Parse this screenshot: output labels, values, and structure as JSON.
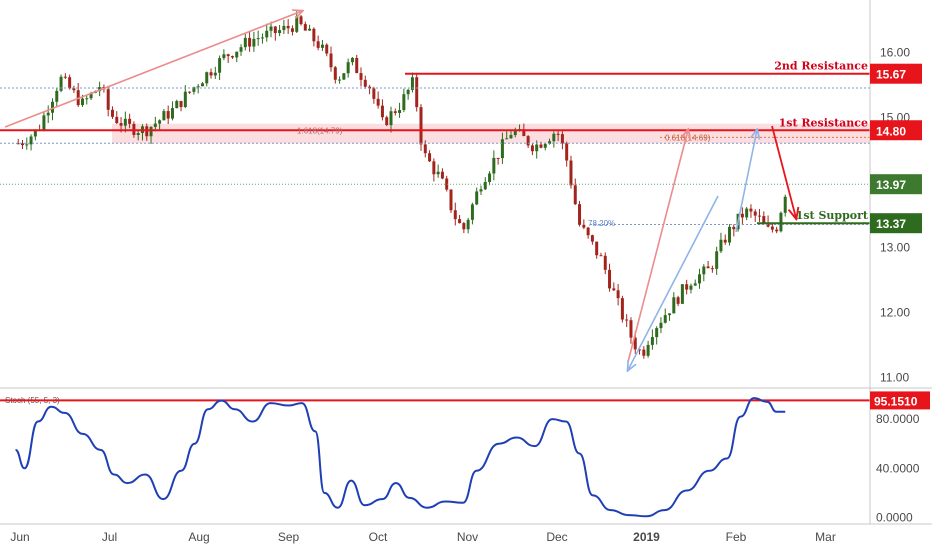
{
  "chart_data": [
    {
      "type": "candlestick",
      "title": "",
      "x_ticks": [
        "Jun",
        "Jul",
        "Aug",
        "Sep",
        "Oct",
        "Nov",
        "Dec",
        "2019",
        "Feb",
        "Mar"
      ],
      "y_ticks": [
        "16.00",
        "15.00",
        "14.00",
        "13.00",
        "12.00",
        "11.00"
      ],
      "ylim": [
        10.85,
        16.65
      ],
      "price_path": [
        {
          "m": 0.0,
          "v": 14.6
        },
        {
          "m": 0.2,
          "v": 14.8
        },
        {
          "m": 0.45,
          "v": 15.6
        },
        {
          "m": 0.7,
          "v": 15.2
        },
        {
          "m": 0.9,
          "v": 15.5
        },
        {
          "m": 1.0,
          "v": 15.05
        },
        {
          "m": 1.2,
          "v": 14.85
        },
        {
          "m": 1.4,
          "v": 14.8
        },
        {
          "m": 1.7,
          "v": 15.1
        },
        {
          "m": 2.0,
          "v": 15.55
        },
        {
          "m": 2.3,
          "v": 15.95
        },
        {
          "m": 2.6,
          "v": 16.2
        },
        {
          "m": 2.95,
          "v": 16.35
        },
        {
          "m": 3.1,
          "v": 16.45
        },
        {
          "m": 3.35,
          "v": 16.1
        },
        {
          "m": 3.55,
          "v": 15.6
        },
        {
          "m": 3.7,
          "v": 15.85
        },
        {
          "m": 3.9,
          "v": 15.5
        },
        {
          "m": 4.05,
          "v": 14.9
        },
        {
          "m": 4.25,
          "v": 15.2
        },
        {
          "m": 4.4,
          "v": 15.55
        },
        {
          "m": 4.5,
          "v": 14.45
        },
        {
          "m": 4.7,
          "v": 14.05
        },
        {
          "m": 4.85,
          "v": 13.5
        },
        {
          "m": 4.95,
          "v": 13.25
        },
        {
          "m": 5.15,
          "v": 14.0
        },
        {
          "m": 5.3,
          "v": 14.35
        },
        {
          "m": 5.5,
          "v": 14.8
        },
        {
          "m": 5.75,
          "v": 14.55
        },
        {
          "m": 6.0,
          "v": 14.8
        },
        {
          "m": 6.1,
          "v": 14.4
        },
        {
          "m": 6.25,
          "v": 13.35
        },
        {
          "m": 6.5,
          "v": 12.8
        },
        {
          "m": 6.7,
          "v": 12.05
        },
        {
          "m": 6.85,
          "v": 11.55
        },
        {
          "m": 6.95,
          "v": 11.35
        },
        {
          "m": 7.05,
          "v": 11.7
        },
        {
          "m": 7.25,
          "v": 12.05
        },
        {
          "m": 7.5,
          "v": 12.5
        },
        {
          "m": 7.7,
          "v": 12.65
        },
        {
          "m": 7.9,
          "v": 13.2
        },
        {
          "m": 8.1,
          "v": 13.55
        },
        {
          "m": 8.25,
          "v": 13.45
        },
        {
          "m": 8.35,
          "v": 13.25
        },
        {
          "m": 8.45,
          "v": 13.3
        },
        {
          "m": 8.55,
          "v": 13.85
        }
      ],
      "horizontal_levels": [
        {
          "value": 15.67,
          "label": "2nd Resistance",
          "tag": "15.67",
          "color": "#e8141c"
        },
        {
          "value": 14.8,
          "label": "1st Resistance",
          "tag": "14.80",
          "color": "#e8141c"
        },
        {
          "value": 13.37,
          "label": "1st Support",
          "tag": "13.37",
          "color": "#2e6b1e"
        }
      ],
      "current_price_tag": "13.97",
      "fib_labels": [
        "1.618(14.79)",
        "0.618(14.69)",
        "78.20%"
      ],
      "resistance_zone": [
        14.6,
        14.9
      ],
      "colors": {
        "resistance": "#e8141c",
        "support": "#2e6b1e",
        "up_candle": "#2e6b1e",
        "down_candle": "#a3241d",
        "price_tag": "#3d7a30",
        "zone": "#fbd6d8"
      }
    },
    {
      "type": "line",
      "title": "Stoch (55, 5, 3)",
      "y_ticks": [
        "80.0000",
        "40.0000",
        "0.0000"
      ],
      "ylim": [
        -2,
        102
      ],
      "level": {
        "value": 95.151,
        "tag": "95.1510"
      },
      "series": [
        {
          "name": "",
          "color": "#1f3fb6",
          "points": [
            {
              "m": -0.05,
              "v": 55
            },
            {
              "m": 0.05,
              "v": 40
            },
            {
              "m": 0.2,
              "v": 78
            },
            {
              "m": 0.35,
              "v": 90
            },
            {
              "m": 0.5,
              "v": 85
            },
            {
              "m": 0.7,
              "v": 68
            },
            {
              "m": 0.9,
              "v": 55
            },
            {
              "m": 1.05,
              "v": 35
            },
            {
              "m": 1.2,
              "v": 28
            },
            {
              "m": 1.4,
              "v": 35
            },
            {
              "m": 1.6,
              "v": 15
            },
            {
              "m": 1.8,
              "v": 38
            },
            {
              "m": 1.95,
              "v": 60
            },
            {
              "m": 2.1,
              "v": 88
            },
            {
              "m": 2.25,
              "v": 95
            },
            {
              "m": 2.4,
              "v": 88
            },
            {
              "m": 2.6,
              "v": 78
            },
            {
              "m": 2.8,
              "v": 93
            },
            {
              "m": 3.0,
              "v": 91
            },
            {
              "m": 3.15,
              "v": 93
            },
            {
              "m": 3.3,
              "v": 70
            },
            {
              "m": 3.4,
              "v": 20
            },
            {
              "m": 3.55,
              "v": 8
            },
            {
              "m": 3.7,
              "v": 30
            },
            {
              "m": 3.85,
              "v": 10
            },
            {
              "m": 4.05,
              "v": 15
            },
            {
              "m": 4.2,
              "v": 28
            },
            {
              "m": 4.35,
              "v": 16
            },
            {
              "m": 4.55,
              "v": 8
            },
            {
              "m": 4.75,
              "v": 13
            },
            {
              "m": 4.95,
              "v": 12
            },
            {
              "m": 5.1,
              "v": 38
            },
            {
              "m": 5.35,
              "v": 60
            },
            {
              "m": 5.55,
              "v": 65
            },
            {
              "m": 5.75,
              "v": 58
            },
            {
              "m": 5.95,
              "v": 80
            },
            {
              "m": 6.1,
              "v": 78
            },
            {
              "m": 6.25,
              "v": 52
            },
            {
              "m": 6.4,
              "v": 18
            },
            {
              "m": 6.6,
              "v": 6
            },
            {
              "m": 6.8,
              "v": 2
            },
            {
              "m": 7.0,
              "v": 1
            },
            {
              "m": 7.2,
              "v": 6
            },
            {
              "m": 7.45,
              "v": 22
            },
            {
              "m": 7.7,
              "v": 38
            },
            {
              "m": 7.9,
              "v": 48
            },
            {
              "m": 8.05,
              "v": 82
            },
            {
              "m": 8.2,
              "v": 97
            },
            {
              "m": 8.35,
              "v": 94
            },
            {
              "m": 8.45,
              "v": 86
            },
            {
              "m": 8.55,
              "v": 86
            }
          ]
        }
      ]
    }
  ]
}
